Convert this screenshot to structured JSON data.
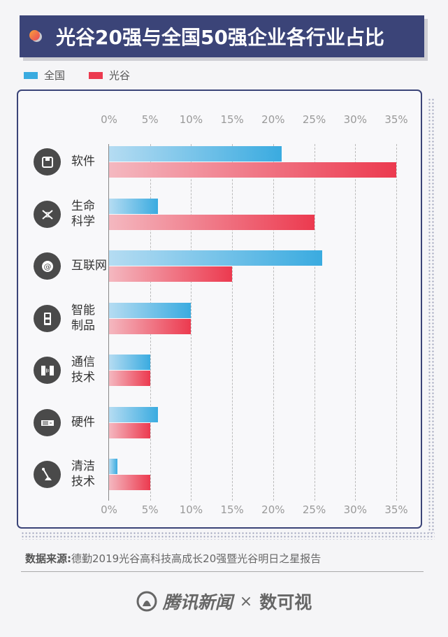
{
  "title": "光谷20强与全国50强企业各行业占比",
  "legend": [
    {
      "label": "全国",
      "color": "#3aabe0"
    },
    {
      "label": "光谷",
      "color": "#ec3a4f"
    }
  ],
  "axis_ticks": [
    "0%",
    "5%",
    "10%",
    "15%",
    "20%",
    "25%",
    "30%",
    "35%"
  ],
  "categories": [
    {
      "label_line1": "软件",
      "label_line2": "",
      "icon": "floppy-disk-icon"
    },
    {
      "label_line1": "生命",
      "label_line2": "科学",
      "icon": "dna-icon"
    },
    {
      "label_line1": "互联网",
      "label_line2": "",
      "icon": "at-sign-icon"
    },
    {
      "label_line1": "智能",
      "label_line2": "制品",
      "icon": "smart-device-icon"
    },
    {
      "label_line1": "通信",
      "label_line2": "技术",
      "icon": "phones-signal-icon"
    },
    {
      "label_line1": "硬件",
      "label_line2": "",
      "icon": "hardware-board-icon"
    },
    {
      "label_line1": "清洁",
      "label_line2": "技术",
      "icon": "microphone-stand-icon"
    }
  ],
  "source": {
    "label": "数据来源:",
    "text": "德勤2019光谷高科技高成长20强暨光谷明日之星报告"
  },
  "footer": {
    "brand1": "腾讯新闻",
    "separator": "×",
    "brand2": "数可视"
  },
  "chart_data": {
    "type": "bar",
    "orientation": "horizontal",
    "title": "光谷20强与全国50强企业各行业占比",
    "categories": [
      "软件",
      "生命科学",
      "互联网",
      "智能制品",
      "通信技术",
      "硬件",
      "清洁技术"
    ],
    "series": [
      {
        "name": "全国",
        "color": "#3aabe0",
        "values": [
          21,
          6,
          26,
          10,
          5,
          6,
          1
        ]
      },
      {
        "name": "光谷",
        "color": "#ec3a4f",
        "values": [
          35,
          25,
          15,
          10,
          5,
          5,
          5
        ]
      }
    ],
    "xlabel": "",
    "ylabel": "",
    "xlim": [
      0,
      35
    ],
    "xticks": [
      "0%",
      "5%",
      "10%",
      "15%",
      "20%",
      "25%",
      "30%",
      "35%"
    ],
    "grid": true,
    "legend_position": "top-left"
  }
}
